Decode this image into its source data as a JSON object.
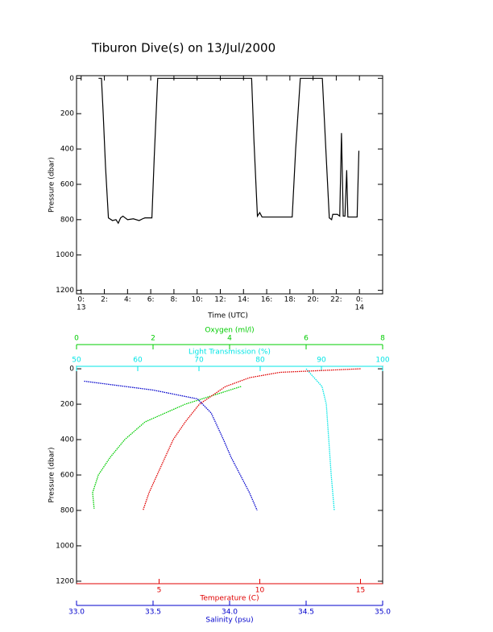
{
  "chart_data": [
    {
      "type": "line",
      "title": "Tiburon Dive(s) on 13/Jul/2000",
      "x_label": "Time (UTC)",
      "y_label": "Pressure (dbar)",
      "xlim": [
        -0.4,
        26
      ],
      "ylim": [
        1220,
        -15
      ],
      "xticks": [
        {
          "value": 0,
          "label": "0:",
          "sublabel": "13"
        },
        {
          "value": 2,
          "label": "2:"
        },
        {
          "value": 4,
          "label": "4:"
        },
        {
          "value": 6,
          "label": "6:"
        },
        {
          "value": 8,
          "label": "8:"
        },
        {
          "value": 10,
          "label": "10:"
        },
        {
          "value": 12,
          "label": "12:"
        },
        {
          "value": 14,
          "label": "14:"
        },
        {
          "value": 16,
          "label": "16:"
        },
        {
          "value": 18,
          "label": "18:"
        },
        {
          "value": 20,
          "label": "20:"
        },
        {
          "value": 22,
          "label": "22:"
        },
        {
          "value": 24,
          "label": "0:",
          "sublabel": "14"
        }
      ],
      "yticks": [
        0,
        200,
        400,
        600,
        800,
        1000,
        1200
      ],
      "color": "#000000",
      "x": [
        1.5,
        1.75,
        1.9,
        2.1,
        2.35,
        2.7,
        3.0,
        3.2,
        3.4,
        3.6,
        4.0,
        4.5,
        5.0,
        5.3,
        5.5,
        6.1,
        6.3,
        6.6,
        14.7,
        14.9,
        15.2,
        15.4,
        15.6,
        17.0,
        18.2,
        18.5,
        18.9,
        20.8,
        21.1,
        21.4,
        21.6,
        21.7,
        22.1,
        22.3,
        22.45,
        22.6,
        22.75,
        22.9,
        23.0,
        23.8,
        23.95
      ],
      "values": [
        0,
        0,
        200,
        500,
        790,
        805,
        800,
        820,
        790,
        780,
        800,
        795,
        805,
        795,
        790,
        790,
        450,
        0,
        0,
        350,
        780,
        760,
        785,
        785,
        785,
        400,
        0,
        0,
        400,
        790,
        800,
        770,
        770,
        780,
        310,
        780,
        780,
        520,
        785,
        785,
        410
      ]
    },
    {
      "type": "profile",
      "y_label": "Pressure (dbar)",
      "ylim": [
        1214,
        -14
      ],
      "yticks": [
        0,
        200,
        400,
        600,
        800,
        1000,
        1200
      ],
      "axes": [
        {
          "label": "Oxygen (ml/l)",
          "position": "top",
          "color": "#00cc00",
          "lim": [
            0,
            8
          ],
          "ticks": [
            0,
            2,
            4,
            6,
            8
          ],
          "series": {
            "values": [
              4.3,
              2.84,
              1.79,
              1.26,
              0.88,
              0.57,
              0.42,
              0.46
            ],
            "pressure": [
              100,
              200,
              300,
              400,
              500,
              600,
              700,
              790
            ]
          }
        },
        {
          "label": "Light Transmission (%)",
          "position": "top",
          "color": "#00e5e5",
          "lim": [
            50,
            100
          ],
          "ticks": [
            50,
            60,
            70,
            80,
            90,
            100
          ],
          "series": {
            "values": [
              87.5,
              90.1,
              90.8,
              91.2,
              91.6,
              92.1
            ],
            "pressure": [
              0,
              100,
              200,
              400,
              600,
              800
            ]
          }
        },
        {
          "label": "Temperature (C)",
          "position": "bottom",
          "color": "#e00000",
          "lim": [
            0.9,
            16.1
          ],
          "ticks": [
            5,
            10,
            15
          ],
          "series": {
            "values": [
              15,
              11,
              9.5,
              8.3,
              7.0,
              6.3,
              5.7,
              5.3,
              4.9,
              4.5,
              4.2
            ],
            "pressure": [
              0,
              20,
              50,
              100,
              200,
              300,
              400,
              500,
              600,
              700,
              800
            ]
          }
        },
        {
          "label": "Salinity (psu)",
          "position": "bottom",
          "color": "#0000cc",
          "lim": [
            33,
            35
          ],
          "ticks": [
            {
              "value": 33,
              "label": "33.0"
            },
            {
              "value": 33.5,
              "label": "33.5"
            },
            {
              "value": 34,
              "label": "34.0"
            },
            {
              "value": 34.5,
              "label": "34.5"
            },
            {
              "value": 35,
              "label": "35.0"
            }
          ],
          "series": {
            "values": [
              33.05,
              33.5,
              33.79,
              33.88,
              33.96,
              34.01,
              34.07,
              34.13,
              34.18
            ],
            "pressure": [
              70,
              120,
              170,
              250,
              400,
              500,
              600,
              700,
              800
            ]
          }
        }
      ]
    }
  ]
}
